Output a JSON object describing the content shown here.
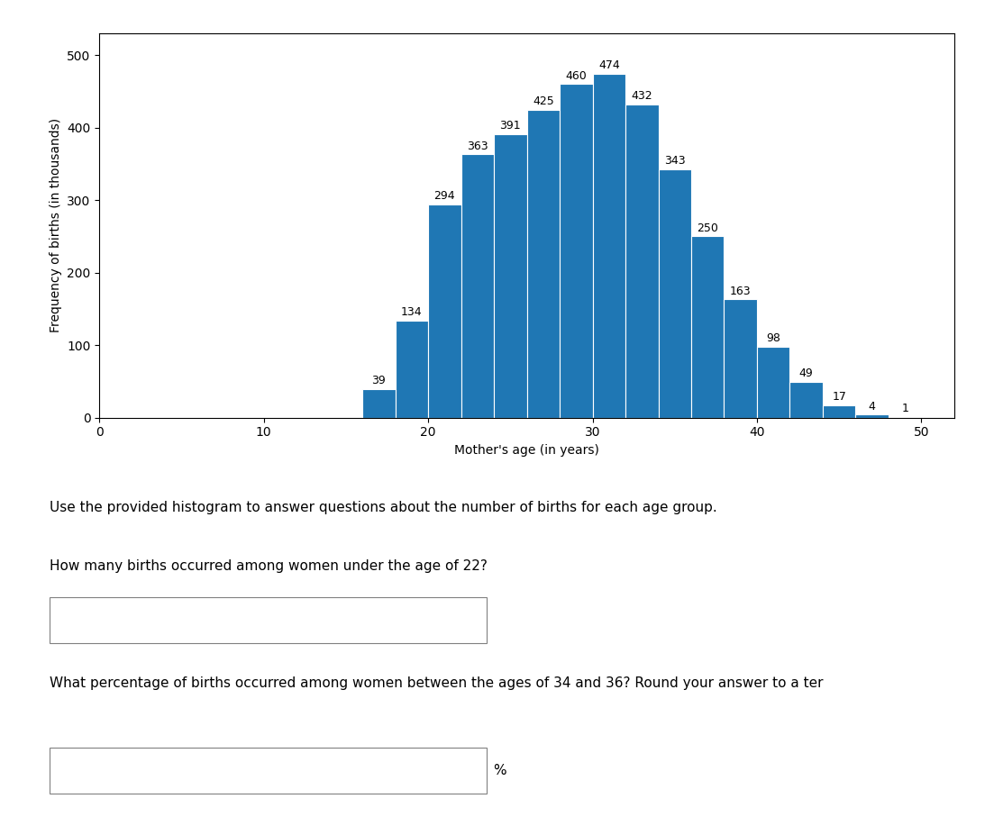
{
  "chart_data": {
    "type": "histogram",
    "bins": [
      16,
      18,
      20,
      22,
      24,
      26,
      28,
      30,
      32,
      34,
      36,
      38,
      40,
      42,
      44,
      46,
      48,
      50
    ],
    "values": [
      39,
      134,
      294,
      363,
      391,
      425,
      460,
      474,
      432,
      343,
      250,
      163,
      98,
      49,
      17,
      4,
      1
    ],
    "x_label": "Mother's age (in years)",
    "y_label": "Frequency of births (in thousands)",
    "xlim": [
      0,
      52
    ],
    "ylim": [
      0,
      530
    ],
    "xticks": [
      0,
      10,
      20,
      30,
      40,
      50
    ],
    "yticks": [
      0,
      100,
      200,
      300,
      400,
      500
    ],
    "data_labels": true,
    "annotations": [
      "Use the provided histogram to answer questions about the number of births for each age group.",
      "How many births occurred among women under the age of 22?",
      "What percentage of births occurred among women between the ages of 34 and 36? Round your answer to a ter",
      "%"
    ]
  }
}
